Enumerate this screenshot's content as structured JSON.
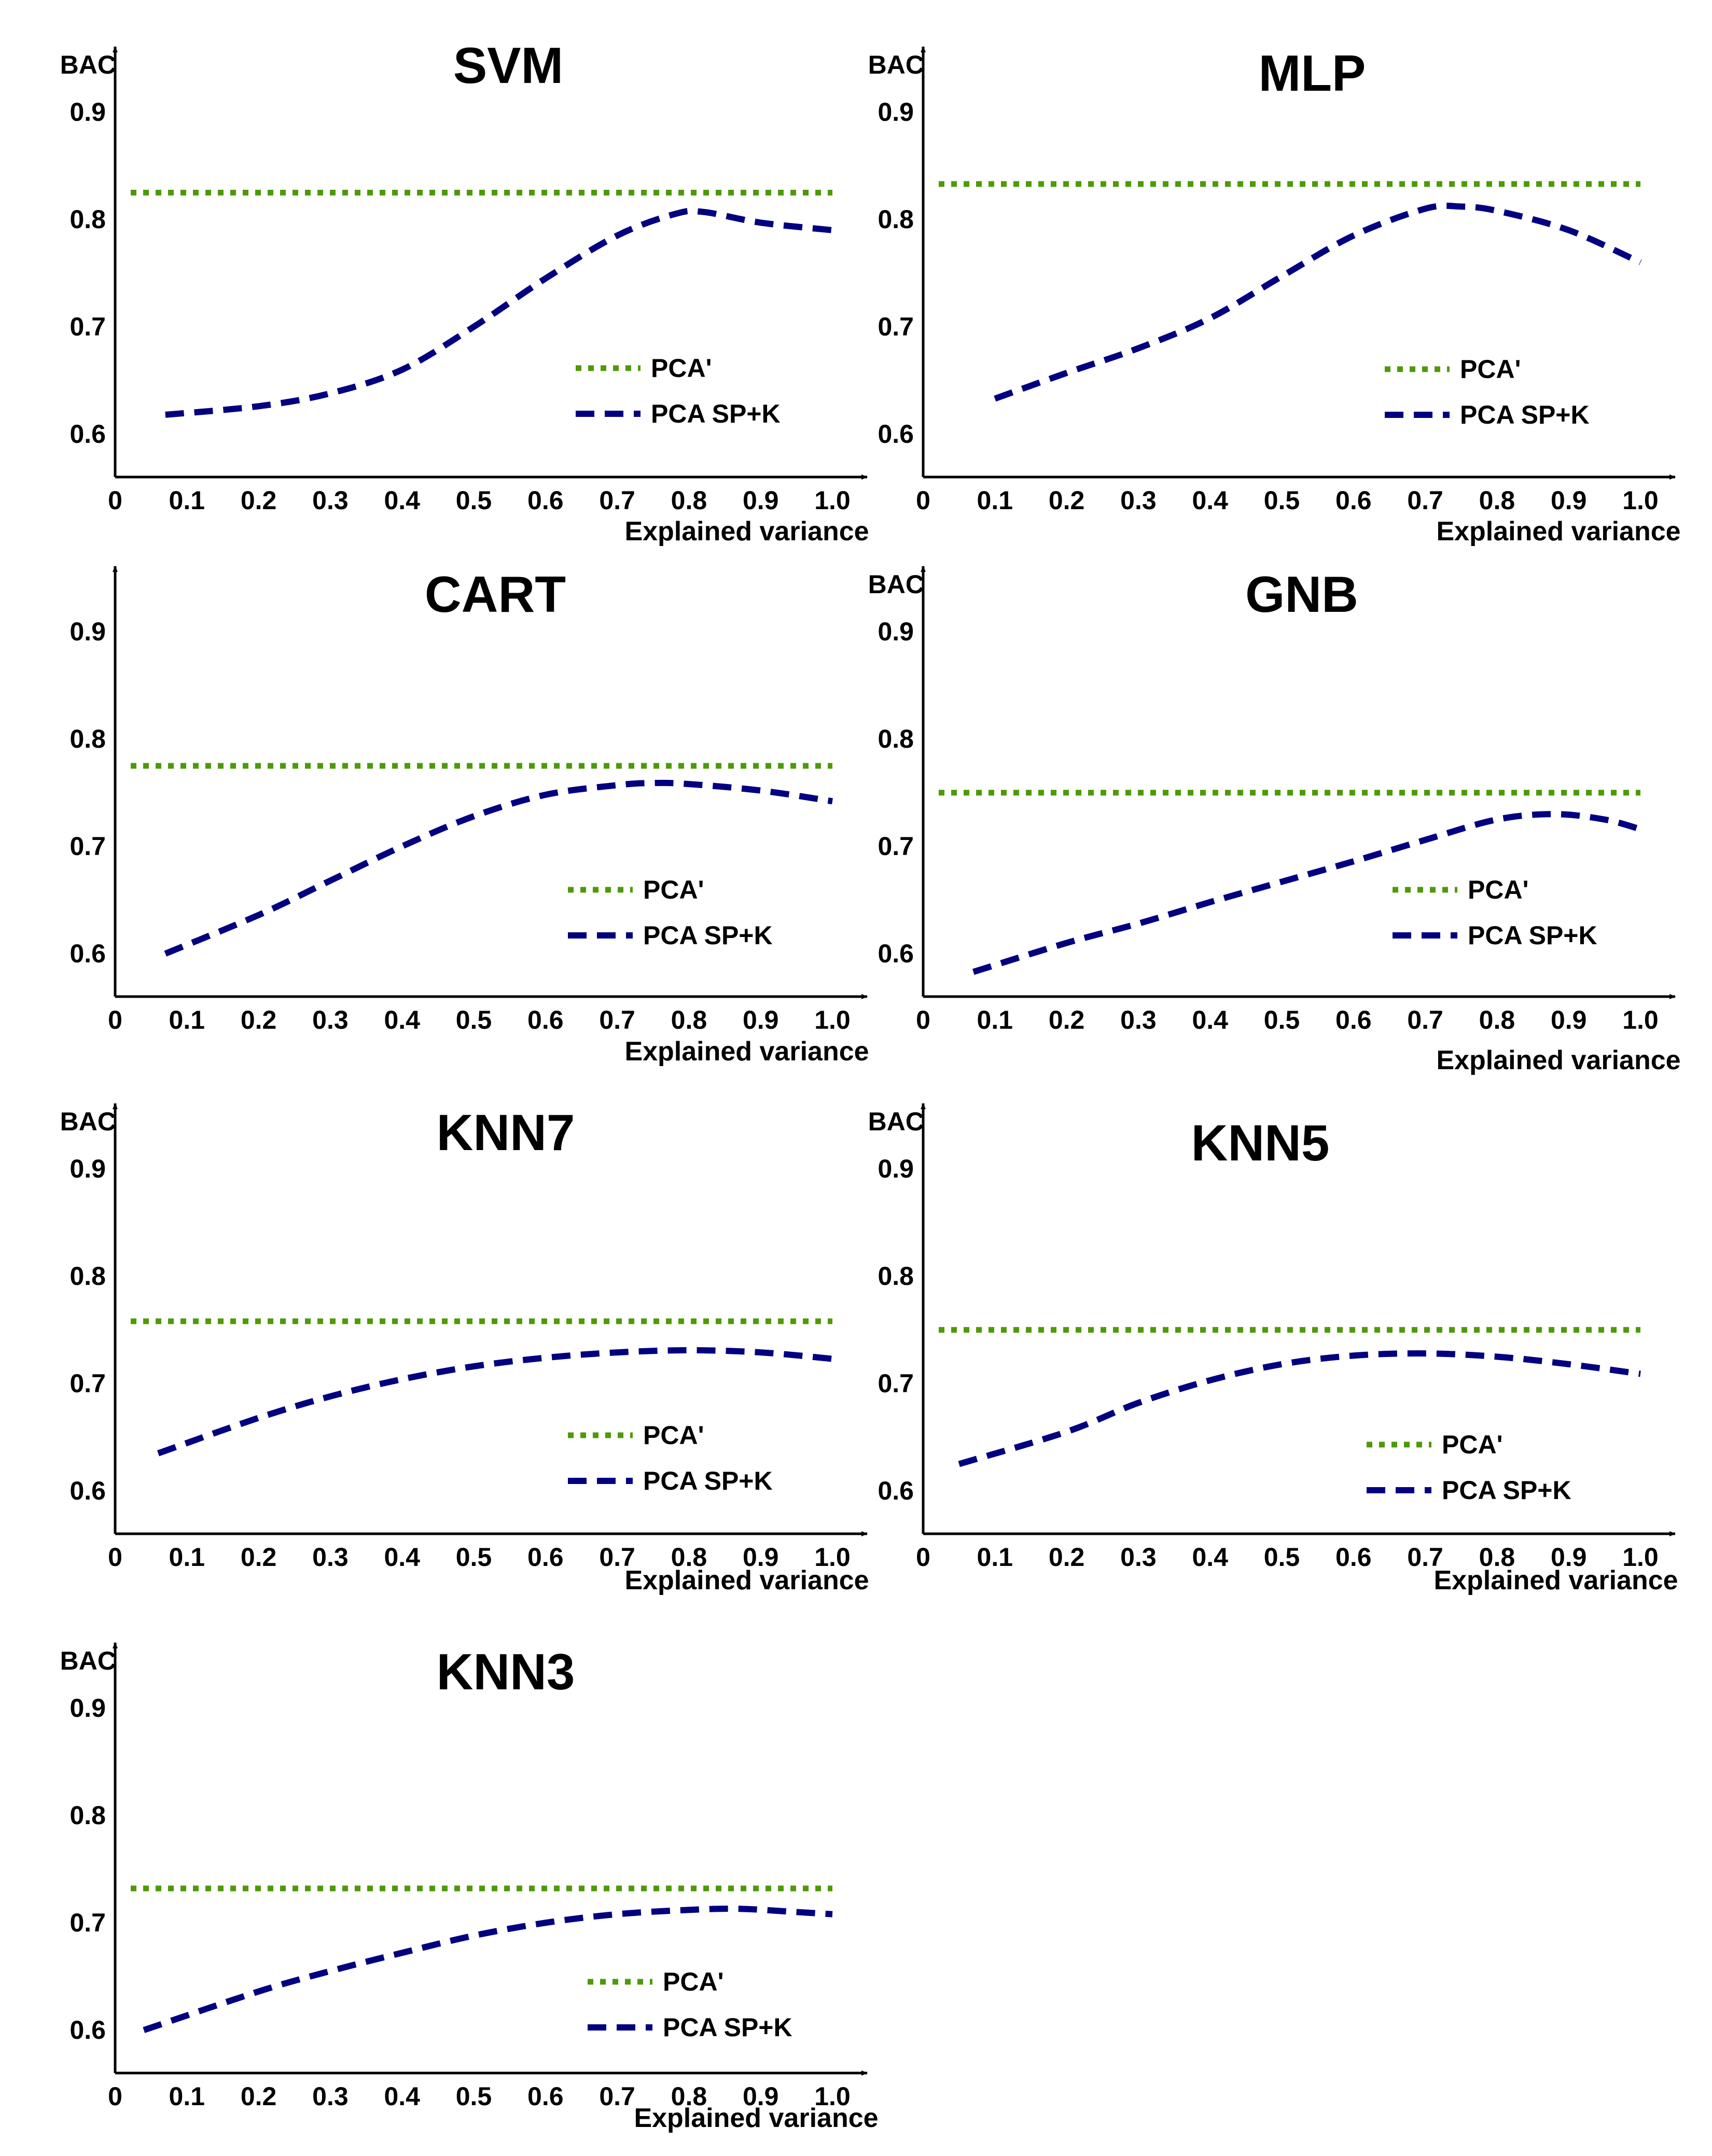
{
  "chart_data": [
    {
      "type": "line",
      "title": "SVM",
      "xlabel": "Explained variance",
      "ylabel": "BAC",
      "xlim": [
        0,
        1.05
      ],
      "ylim": [
        0.56,
        0.95
      ],
      "x_ticks": [
        "0",
        "0.1",
        "0.2",
        "0.3",
        "0.4",
        "0.5",
        "0.6",
        "0.7",
        "0.8",
        "0.9",
        "1.0"
      ],
      "y_ticks": [
        "0.6",
        "0.7",
        "0.8",
        "0.9"
      ],
      "legend": [
        "PCA'",
        "PCA SP+K"
      ],
      "baseline": {
        "name": "PCA'",
        "value": 0.825,
        "color": "#4e9a06"
      },
      "series": [
        {
          "name": "PCA SP+K",
          "color": "#000080",
          "x": [
            0.07,
            0.2,
            0.3,
            0.4,
            0.5,
            0.6,
            0.7,
            0.78,
            0.82,
            0.9,
            1.0
          ],
          "values": [
            0.618,
            0.626,
            0.638,
            0.66,
            0.7,
            0.745,
            0.785,
            0.805,
            0.807,
            0.797,
            0.79
          ]
        }
      ]
    },
    {
      "type": "line",
      "title": "MLP",
      "xlabel": "Explained variance",
      "ylabel": "BAC",
      "xlim": [
        0,
        1.05
      ],
      "ylim": [
        0.56,
        0.95
      ],
      "x_ticks": [
        "0",
        "0.1",
        "0.2",
        "0.3",
        "0.4",
        "0.5",
        "0.6",
        "0.7",
        "0.8",
        "0.9",
        "1.0"
      ],
      "y_ticks": [
        "0.6",
        "0.7",
        "0.8",
        "0.9"
      ],
      "legend": [
        "PCA'",
        "PCA SP+K"
      ],
      "baseline": {
        "name": "PCA'",
        "value": 0.833,
        "color": "#4e9a06"
      },
      "series": [
        {
          "name": "PCA SP+K",
          "color": "#000080",
          "x": [
            0.1,
            0.2,
            0.3,
            0.4,
            0.5,
            0.6,
            0.7,
            0.75,
            0.8,
            0.9,
            1.0
          ],
          "values": [
            0.633,
            0.657,
            0.68,
            0.708,
            0.747,
            0.785,
            0.81,
            0.812,
            0.808,
            0.79,
            0.76
          ]
        }
      ]
    },
    {
      "type": "line",
      "title": "CART",
      "xlabel": "Explained variance",
      "ylabel": "",
      "xlim": [
        0,
        1.05
      ],
      "ylim": [
        0.56,
        0.95
      ],
      "x_ticks": [
        "0",
        "0.1",
        "0.2",
        "0.3",
        "0.4",
        "0.5",
        "0.6",
        "0.7",
        "0.8",
        "0.9",
        "1.0"
      ],
      "y_ticks": [
        "0.6",
        "0.7",
        "0.8",
        "0.9"
      ],
      "legend": [
        "PCA'",
        "PCA SP+K"
      ],
      "baseline": {
        "name": "PCA'",
        "value": 0.775,
        "color": "#4e9a06"
      },
      "series": [
        {
          "name": "PCA SP+K",
          "color": "#000080",
          "x": [
            0.07,
            0.2,
            0.3,
            0.4,
            0.5,
            0.6,
            0.7,
            0.75,
            0.8,
            0.9,
            1.0
          ],
          "values": [
            0.6,
            0.636,
            0.668,
            0.7,
            0.728,
            0.748,
            0.757,
            0.759,
            0.758,
            0.752,
            0.742
          ]
        }
      ]
    },
    {
      "type": "line",
      "title": "GNB",
      "xlabel": "Explained variance",
      "ylabel": "BAC",
      "xlim": [
        0,
        1.05
      ],
      "ylim": [
        0.56,
        0.95
      ],
      "x_ticks": [
        "0",
        "0.1",
        "0.2",
        "0.3",
        "0.4",
        "0.5",
        "0.6",
        "0.7",
        "0.8",
        "0.9",
        "1.0"
      ],
      "y_ticks": [
        "0.6",
        "0.7",
        "0.8",
        "0.9"
      ],
      "legend": [
        "PCA'",
        "PCA SP+K"
      ],
      "baseline": {
        "name": "PCA'",
        "value": 0.75,
        "color": "#4e9a06"
      },
      "series": [
        {
          "name": "PCA SP+K",
          "color": "#000080",
          "x": [
            0.07,
            0.2,
            0.3,
            0.4,
            0.5,
            0.6,
            0.7,
            0.8,
            0.88,
            0.95,
            1.0
          ],
          "values": [
            0.583,
            0.61,
            0.628,
            0.648,
            0.667,
            0.686,
            0.706,
            0.725,
            0.73,
            0.725,
            0.716
          ]
        }
      ]
    },
    {
      "type": "line",
      "title": "KNN7",
      "xlabel": "Explained variance",
      "ylabel": "BAC",
      "xlim": [
        0,
        1.05
      ],
      "ylim": [
        0.56,
        0.95
      ],
      "x_ticks": [
        "0",
        "0.1",
        "0.2",
        "0.3",
        "0.4",
        "0.5",
        "0.6",
        "0.7",
        "0.8",
        "0.9",
        "1.0"
      ],
      "y_ticks": [
        "0.6",
        "0.7",
        "0.8",
        "0.9"
      ],
      "legend": [
        "PCA'",
        "PCA SP+K"
      ],
      "baseline": {
        "name": "PCA'",
        "value": 0.758,
        "color": "#4e9a06"
      },
      "series": [
        {
          "name": "PCA SP+K",
          "color": "#000080",
          "x": [
            0.06,
            0.2,
            0.3,
            0.4,
            0.5,
            0.6,
            0.7,
            0.8,
            0.9,
            1.0
          ],
          "values": [
            0.635,
            0.668,
            0.688,
            0.704,
            0.716,
            0.724,
            0.729,
            0.731,
            0.729,
            0.723
          ]
        }
      ]
    },
    {
      "type": "line",
      "title": "KNN5",
      "xlabel": "Explained variance",
      "ylabel": "BAC",
      "xlim": [
        0,
        1.05
      ],
      "ylim": [
        0.56,
        0.95
      ],
      "x_ticks": [
        "0",
        "0.1",
        "0.2",
        "0.3",
        "0.4",
        "0.5",
        "0.6",
        "0.7",
        "0.8",
        "0.9",
        "1.0"
      ],
      "y_ticks": [
        "0.6",
        "0.7",
        "0.8",
        "0.9"
      ],
      "legend": [
        "PCA'",
        "PCA SP+K"
      ],
      "baseline": {
        "name": "PCA'",
        "value": 0.75,
        "color": "#4e9a06"
      },
      "series": [
        {
          "name": "PCA SP+K",
          "color": "#000080",
          "x": [
            0.05,
            0.2,
            0.3,
            0.4,
            0.5,
            0.6,
            0.7,
            0.8,
            0.9,
            1.0
          ],
          "values": [
            0.625,
            0.655,
            0.682,
            0.703,
            0.718,
            0.726,
            0.728,
            0.725,
            0.718,
            0.709
          ]
        }
      ]
    },
    {
      "type": "line",
      "title": "KNN3",
      "xlabel": "Explained variance",
      "ylabel": "BAC",
      "xlim": [
        0,
        1.05
      ],
      "ylim": [
        0.56,
        0.95
      ],
      "x_ticks": [
        "0",
        "0.1",
        "0.2",
        "0.3",
        "0.4",
        "0.5",
        "0.6",
        "0.7",
        "0.8",
        "0.9",
        "1.0"
      ],
      "y_ticks": [
        "0.6",
        "0.7",
        "0.8",
        "0.9"
      ],
      "legend": [
        "PCA'",
        "PCA SP+K"
      ],
      "baseline": {
        "name": "PCA'",
        "value": 0.732,
        "color": "#4e9a06"
      },
      "series": [
        {
          "name": "PCA SP+K",
          "color": "#000080",
          "x": [
            0.04,
            0.2,
            0.3,
            0.4,
            0.5,
            0.6,
            0.7,
            0.8,
            0.87,
            0.95,
            1.0
          ],
          "values": [
            0.6,
            0.636,
            0.655,
            0.672,
            0.688,
            0.7,
            0.708,
            0.712,
            0.713,
            0.71,
            0.708
          ]
        }
      ]
    }
  ]
}
